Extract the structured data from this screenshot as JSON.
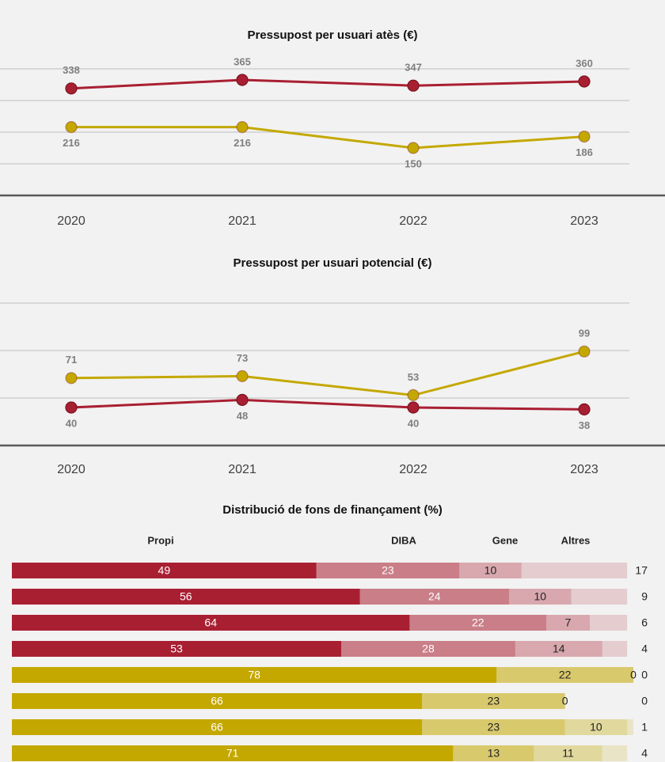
{
  "chart_data": [
    {
      "type": "line",
      "title": "Pressupost per usuari atès (€)",
      "categories": [
        "2020",
        "2021",
        "2022",
        "2023"
      ],
      "series": [
        {
          "color": "#a91f32",
          "values": [
            338,
            365,
            347,
            360
          ]
        },
        {
          "color": "#c4a800",
          "values": [
            216,
            216,
            150,
            186
          ]
        }
      ],
      "ylim": [
        0,
        400
      ],
      "yticks": [
        0,
        100,
        200,
        300,
        400
      ],
      "grid": true
    },
    {
      "type": "line",
      "title": "Pressupost per usuari potencial (€)",
      "categories": [
        "2020",
        "2021",
        "2022",
        "2023"
      ],
      "series": [
        {
          "color": "#a91f32",
          "values": [
            40,
            48,
            40,
            38
          ]
        },
        {
          "color": "#c4a800",
          "values": [
            71,
            73,
            53,
            99
          ]
        }
      ],
      "ylim": [
        0,
        150
      ],
      "yticks": [
        0,
        50,
        100,
        150
      ],
      "grid": true
    },
    {
      "type": "stacked_barh",
      "title": "Distribució de fons de finançament (%)",
      "bar_colors": [
        "#a91f32",
        "#a91f32",
        "#a91f32",
        "#a91f32",
        "#c4a800",
        "#c4a800",
        "#c4a800",
        "#c4a800"
      ],
      "series": [
        {
          "name": "Propi",
          "opacity": 1,
          "values": [
            49,
            56,
            64,
            53,
            78,
            66,
            66,
            71
          ]
        },
        {
          "name": "DIBA",
          "opacity": 0.55,
          "values": [
            23,
            24,
            22,
            28,
            22,
            23,
            23,
            13
          ]
        },
        {
          "name": "Gene",
          "opacity": 0.35,
          "values": [
            10,
            10,
            7,
            14,
            0,
            0,
            10,
            11
          ]
        },
        {
          "name": "Altres",
          "opacity": 0.18,
          "values": [
            17,
            9,
            6,
            4,
            0,
            0,
            1,
            4
          ]
        }
      ],
      "xlim": [
        0,
        100
      ]
    }
  ]
}
